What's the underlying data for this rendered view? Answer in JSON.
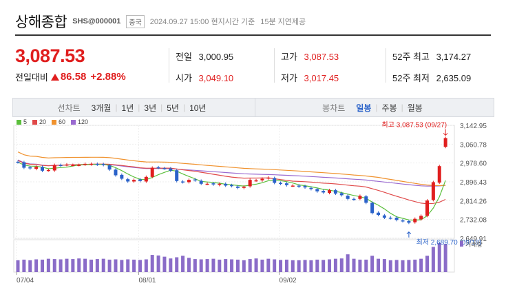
{
  "header": {
    "title": "상해종합",
    "code": "SHS@000001",
    "country_badge": "중국",
    "time": "2024.09.27 15:00 현지시간 기준",
    "delay": "15분 지연제공"
  },
  "quote": {
    "price": "3,087.53",
    "change_label": "전일대비",
    "change_value": "86.58",
    "change_percent": "+2.88%"
  },
  "stats": {
    "prev_label": "전일",
    "prev_value": "3,000.95",
    "open_label": "시가",
    "open_value": "3,049.10",
    "high_label": "고가",
    "high_value": "3,087.53",
    "low_label": "저가",
    "low_value": "3,017.45",
    "high52_label": "52주 최고",
    "high52_value": "3,174.27",
    "low52_label": "52주 최저",
    "low52_value": "2,635.09"
  },
  "toolbar": {
    "line_label": "선차트",
    "periods": [
      "3개월",
      "1년",
      "3년",
      "5년",
      "10년"
    ],
    "candle_label": "봉차트",
    "candle_periods": [
      "일봉",
      "주봉",
      "월봉"
    ],
    "active_candle": "일봉"
  },
  "colors": {
    "up": "#e01e1e",
    "down": "#2a62c9",
    "ma5": "#5bbf3c",
    "ma20": "#e04a4a",
    "ma60": "#f0922e",
    "ma120": "#9a6ad0",
    "volume": "#8a6cc8"
  },
  "chart_data": {
    "type": "candlestick",
    "legend": [
      "5",
      "20",
      "60",
      "120"
    ],
    "y_ticks": [
      "3,142.95",
      "3,060.78",
      "2,978.60",
      "2,896.43",
      "2,814.26",
      "2,732.08",
      "2,649.91"
    ],
    "ylim": [
      2649.91,
      3142.95
    ],
    "x_labels": [
      "07/04",
      "08/01",
      "09/02"
    ],
    "max_annotation": "최고 3,087.53 (09/27)",
    "min_annotation": "최저 2,689.70 (09/18)",
    "volume_label": "거래량",
    "closes": [
      2982,
      2958,
      2955,
      2962,
      2945,
      2948,
      2970,
      2968,
      2972,
      2970,
      2970,
      2975,
      2975,
      2972,
      2970,
      2950,
      2925,
      2910,
      2898,
      2905,
      2900,
      2918,
      2958,
      2958,
      2955,
      2945,
      2900,
      2895,
      2905,
      2903,
      2888,
      2888,
      2885,
      2888,
      2880,
      2878,
      2870,
      2875,
      2905,
      2903,
      2910,
      2915,
      2892,
      2888,
      2882,
      2880,
      2876,
      2872,
      2865,
      2855,
      2850,
      2860,
      2845,
      2838,
      2822,
      2820,
      2835,
      2805,
      2760,
      2752,
      2740,
      2738,
      2730,
      2725,
      2718,
      2735,
      2748,
      2815,
      2895,
      2965,
      3087.53
    ],
    "volumes": [
      0.4,
      0.42,
      0.4,
      0.43,
      0.42,
      0.45,
      0.44,
      0.43,
      0.45,
      0.44,
      0.46,
      0.45,
      0.42,
      0.44,
      0.45,
      0.42,
      0.43,
      0.41,
      0.43,
      0.42,
      0.41,
      0.43,
      0.58,
      0.56,
      0.52,
      0.46,
      0.5,
      0.55,
      0.48,
      0.44,
      0.43,
      0.44,
      0.45,
      0.42,
      0.44,
      0.43,
      0.42,
      0.4,
      0.44,
      0.46,
      0.42,
      0.45,
      0.43,
      0.41,
      0.42,
      0.4,
      0.4,
      0.41,
      0.4,
      0.42,
      0.41,
      0.43,
      0.45,
      0.46,
      0.6,
      0.45,
      0.42,
      0.42,
      0.55,
      0.45,
      0.44,
      0.4,
      0.41,
      0.4,
      0.41,
      0.42,
      0.45,
      0.55,
      0.85,
      0.98,
      0.95
    ]
  }
}
